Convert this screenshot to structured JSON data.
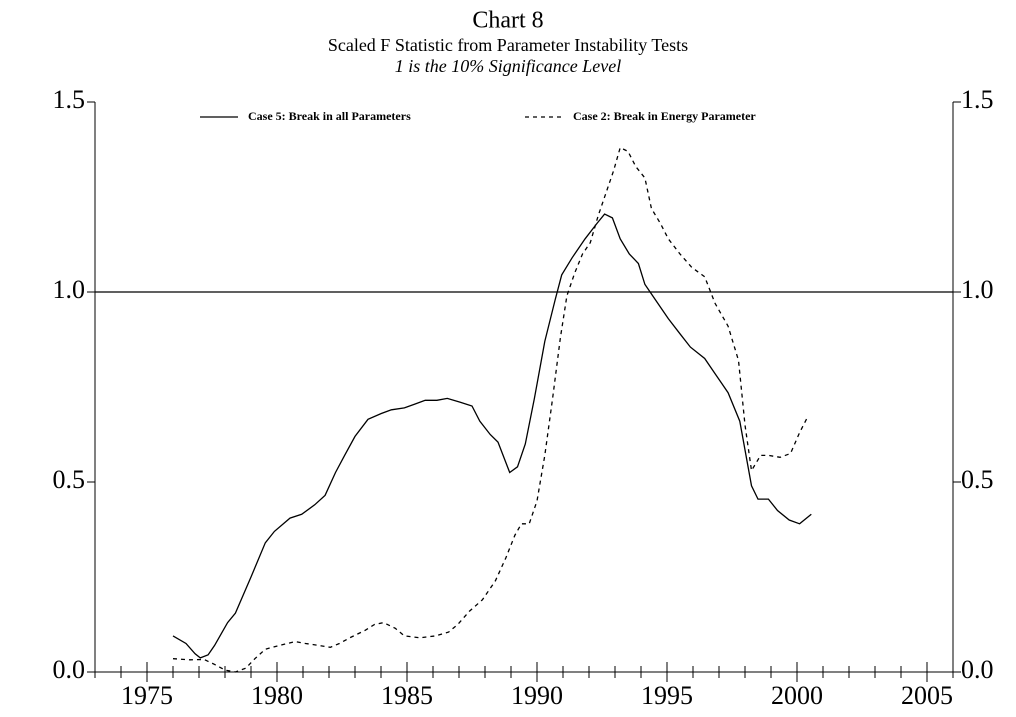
{
  "chart_data": {
    "type": "line",
    "title": "Chart 8",
    "subtitle": "Scaled F Statistic from Parameter Instability Tests",
    "note": "1 is the 10% Significance Level",
    "xlim": [
      1973,
      2006
    ],
    "xticks": [
      1975,
      1980,
      1985,
      1990,
      1995,
      2000,
      2005
    ],
    "xminorticks": [
      1973,
      1974,
      1975,
      1976,
      1977,
      1978,
      1979,
      1980,
      1981,
      1982,
      1983,
      1984,
      1985,
      1986,
      1987,
      1988,
      1989,
      1990,
      1991,
      1992,
      1993,
      1994,
      1995,
      1996,
      1997,
      1998,
      1999,
      2000,
      2001,
      2002,
      2003,
      2004,
      2005,
      2006
    ],
    "ylim": [
      0,
      1.5
    ],
    "yticks": [
      {
        "value": 0,
        "label": "0.0"
      },
      {
        "value": 0.5,
        "label": "0.5"
      },
      {
        "value": 1,
        "label": "1.0"
      },
      {
        "value": 1.5,
        "label": "1.5"
      }
    ],
    "reference_line": 1,
    "series": [
      {
        "name": "Case 5: Break in all Parameters",
        "color": "#000000",
        "style": "solid",
        "x": [
          1976.0,
          1976.5,
          1976.85,
          1977.05,
          1977.35,
          1977.6,
          1978.1,
          1978.4,
          1979.0,
          1979.55,
          1979.9,
          1980.5,
          1980.95,
          1981.45,
          1981.85,
          1982.25,
          1982.6,
          1983.0,
          1983.5,
          1984.0,
          1984.4,
          1984.9,
          1985.3,
          1985.7,
          1986.15,
          1986.55,
          1987.05,
          1987.5,
          1987.8,
          1988.2,
          1988.5,
          1988.95,
          1989.25,
          1989.55,
          1989.9,
          1990.3,
          1990.7,
          1990.95,
          1991.35,
          1991.85,
          1992.3,
          1992.6,
          1992.9,
          1993.2,
          1993.55,
          1993.9,
          1994.15,
          1994.55,
          1995.05,
          1995.5,
          1995.9,
          1996.45,
          1996.85,
          1997.35,
          1997.8,
          1998.25,
          1998.5,
          1998.9,
          1999.25,
          1999.7,
          2000.1,
          2000.55
        ],
        "values": [
          0.095,
          0.075,
          0.048,
          0.037,
          0.045,
          0.07,
          0.13,
          0.155,
          0.25,
          0.34,
          0.37,
          0.405,
          0.415,
          0.44,
          0.465,
          0.525,
          0.57,
          0.62,
          0.665,
          0.68,
          0.69,
          0.695,
          0.705,
          0.715,
          0.715,
          0.72,
          0.71,
          0.7,
          0.66,
          0.625,
          0.605,
          0.525,
          0.54,
          0.6,
          0.72,
          0.87,
          0.98,
          1.045,
          1.09,
          1.14,
          1.18,
          1.205,
          1.195,
          1.14,
          1.1,
          1.075,
          1.02,
          0.98,
          0.93,
          0.89,
          0.855,
          0.825,
          0.785,
          0.735,
          0.66,
          0.49,
          0.455,
          0.455,
          0.425,
          0.4,
          0.39,
          0.415
        ]
      },
      {
        "name": "Case 2: Break in Energy Parameter",
        "color": "#000000",
        "style": "dashed",
        "x": [
          1976.0,
          1976.65,
          1977.2,
          1977.6,
          1978.0,
          1978.4,
          1978.8,
          1979.15,
          1979.55,
          1980.1,
          1980.7,
          1981.1,
          1981.6,
          1982.05,
          1982.4,
          1982.8,
          1983.4,
          1983.75,
          1984.1,
          1984.55,
          1984.9,
          1985.5,
          1986.1,
          1986.6,
          1986.95,
          1987.4,
          1987.9,
          1988.4,
          1988.8,
          1989.15,
          1989.4,
          1989.7,
          1990.0,
          1990.3,
          1990.6,
          1990.9,
          1991.15,
          1991.45,
          1991.75,
          1992.05,
          1992.35,
          1992.65,
          1992.95,
          1993.2,
          1993.5,
          1993.8,
          1994.15,
          1994.4,
          1994.75,
          1995.05,
          1995.5,
          1995.95,
          1996.45,
          1996.85,
          1997.35,
          1997.75,
          1998.0,
          1998.25,
          1998.6,
          1998.9,
          1999.35,
          1999.75,
          2000.1,
          2000.4
        ],
        "values": [
          0.035,
          0.032,
          0.033,
          0.02,
          0.005,
          0.0,
          0.01,
          0.035,
          0.06,
          0.07,
          0.08,
          0.075,
          0.07,
          0.065,
          0.075,
          0.09,
          0.11,
          0.125,
          0.13,
          0.115,
          0.095,
          0.09,
          0.095,
          0.105,
          0.125,
          0.16,
          0.19,
          0.24,
          0.3,
          0.36,
          0.39,
          0.39,
          0.45,
          0.57,
          0.72,
          0.88,
          0.99,
          1.05,
          1.1,
          1.13,
          1.2,
          1.26,
          1.32,
          1.38,
          1.37,
          1.33,
          1.3,
          1.22,
          1.18,
          1.14,
          1.1,
          1.065,
          1.04,
          0.97,
          0.91,
          0.82,
          0.65,
          0.53,
          0.57,
          0.57,
          0.565,
          0.575,
          0.63,
          0.67
        ]
      }
    ]
  }
}
